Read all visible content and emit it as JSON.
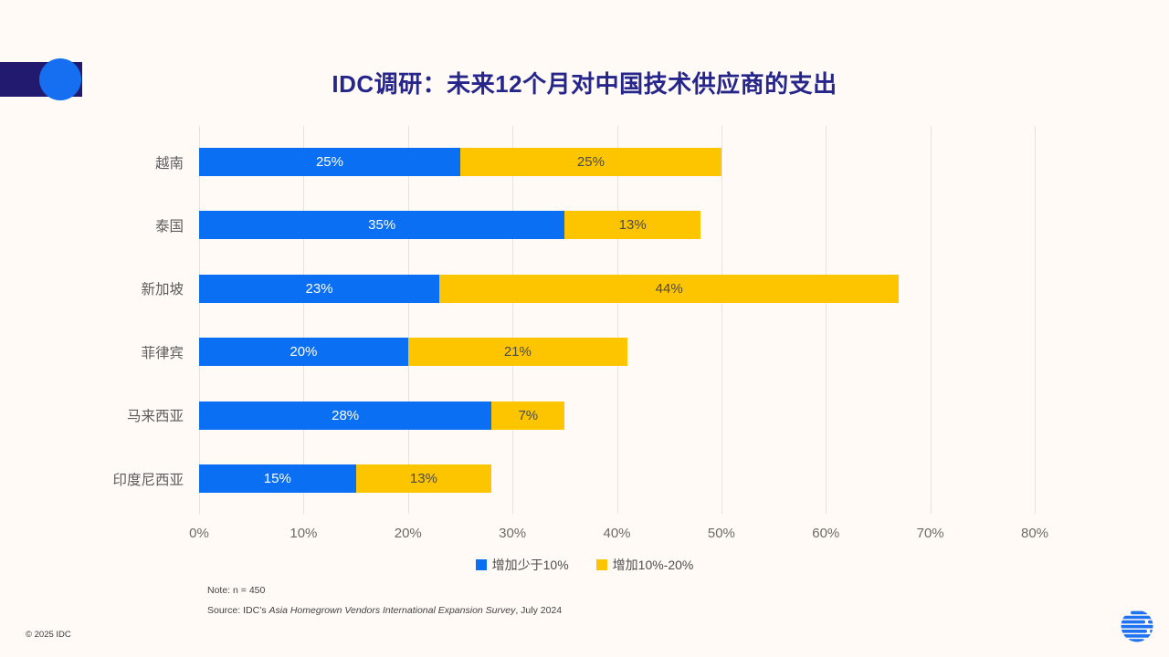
{
  "title": "IDC调研：未来12个月对中国技术供应商的支出",
  "chart_data": {
    "type": "bar",
    "orientation": "horizontal",
    "stacked": true,
    "grid": "vertical",
    "xlim": [
      0,
      80
    ],
    "x_ticks": [
      "0%",
      "10%",
      "20%",
      "30%",
      "40%",
      "50%",
      "60%",
      "70%",
      "80%"
    ],
    "categories": [
      "越南",
      "泰国",
      "新加坡",
      "菲律宾",
      "马来西亚",
      "印度尼西亚"
    ],
    "series": [
      {
        "name": "增加少于10%",
        "color": "#0A6FF3",
        "label_color": "#FFFFFF",
        "values": [
          25,
          35,
          23,
          20,
          28,
          15
        ]
      },
      {
        "name": "增加10%-20%",
        "color": "#FDC500",
        "label_color": "#4A4A4A",
        "values": [
          25,
          13,
          44,
          21,
          7,
          13
        ]
      }
    ],
    "value_suffix": "%",
    "legend_position": "bottom-center"
  },
  "legend": [
    {
      "label": "增加少于10%",
      "color": "#0A6FF3"
    },
    {
      "label": "增加10%-20%",
      "color": "#FDC500"
    }
  ],
  "notes": {
    "note": "Note: n = 450",
    "source_prefix": "Source: IDC’s ",
    "source_italic": "Asia Homegrown Vendors International Expansion Survey",
    "source_suffix": ", July 2024"
  },
  "footer": {
    "copyright": "© 2025 IDC"
  },
  "icons": {
    "logo": "idc-globe-logo"
  },
  "colors": {
    "background": "#FFFAF6",
    "title": "#26268A",
    "accent_bar": "#211A6E",
    "accent_circle": "#156FF0",
    "series_blue": "#0A6FF3",
    "series_yellow": "#FDC500",
    "gridline": "#E6E2DE",
    "axis_text": "#6D6A66"
  }
}
